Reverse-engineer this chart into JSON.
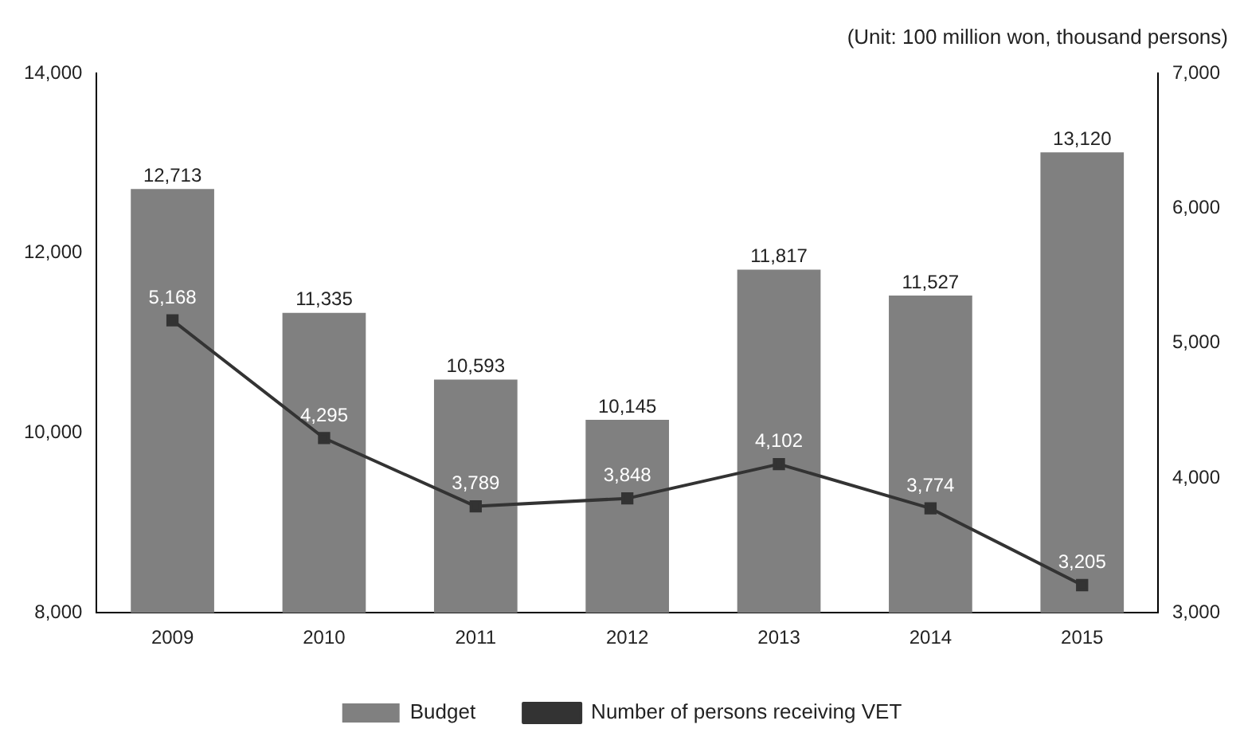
{
  "chart_data": {
    "type": "bar",
    "categories": [
      "2009",
      "2010",
      "2011",
      "2012",
      "2013",
      "2014",
      "2015"
    ],
    "series": [
      {
        "name": "Budget",
        "color": "#808080",
        "values": [
          12713,
          11335,
          10593,
          10145,
          11817,
          11527,
          13120
        ],
        "value_labels": [
          "12,713",
          "11,335",
          "10,593",
          "10,145",
          "11,817",
          "11,527",
          "13,120"
        ]
      },
      {
        "name": "Number of persons receiving VET",
        "type": "line",
        "axis": "y2",
        "color": "#333333",
        "values": [
          5168,
          4295,
          3789,
          3848,
          4102,
          3774,
          3205
        ],
        "value_labels": [
          "5,168",
          "4,295",
          "3,789",
          "3,848",
          "4,102",
          "3,774",
          "3,205"
        ]
      }
    ],
    "ylim": [
      8000,
      14000
    ],
    "yticks": [
      {
        "value": 8000,
        "label": "8,000"
      },
      {
        "value": 10000,
        "label": "10,000"
      },
      {
        "value": 12000,
        "label": "12,000"
      },
      {
        "value": 14000,
        "label": "14,000"
      }
    ],
    "y2lim": [
      3000,
      7000
    ],
    "y2ticks": [
      {
        "value": 3000,
        "label": "3,000"
      },
      {
        "value": 4000,
        "label": "4,000"
      },
      {
        "value": 5000,
        "label": "5,000"
      },
      {
        "value": 6000,
        "label": "6,000"
      },
      {
        "value": 7000,
        "label": "7,000"
      }
    ],
    "annotations": [
      "(Unit: 100 million won, thousand persons)"
    ],
    "grid": false,
    "legend": "bottom",
    "marker": "square",
    "line_style": "solid"
  }
}
